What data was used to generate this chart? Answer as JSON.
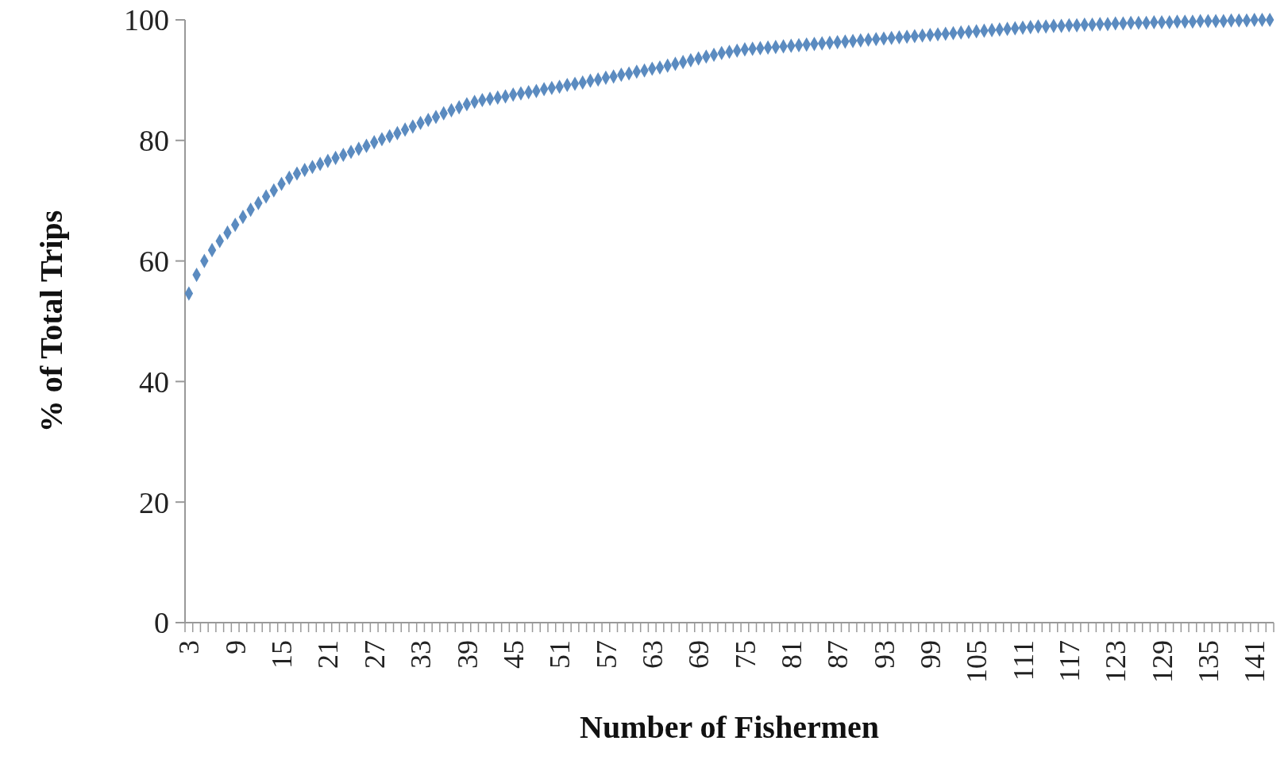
{
  "chart_data": {
    "type": "scatter",
    "xlabel": "Number of Fishermen",
    "ylabel": "% of Total Trips",
    "categories": [
      "3",
      null,
      null,
      null,
      null,
      null,
      "9",
      null,
      null,
      null,
      null,
      null,
      "15",
      null,
      null,
      null,
      null,
      null,
      "21",
      null,
      null,
      null,
      null,
      null,
      "27",
      null,
      null,
      null,
      null,
      null,
      "33",
      null,
      null,
      null,
      null,
      null,
      "39",
      null,
      null,
      null,
      null,
      null,
      "45",
      null,
      null,
      null,
      null,
      null,
      "51",
      null,
      null,
      null,
      null,
      null,
      "57",
      null,
      null,
      null,
      null,
      null,
      "63",
      null,
      null,
      null,
      null,
      null,
      "69",
      null,
      null,
      null,
      null,
      null,
      "75",
      null,
      null,
      null,
      null,
      null,
      "81",
      null,
      null,
      null,
      null,
      null,
      "87",
      null,
      null,
      null,
      null,
      null,
      "93",
      null,
      null,
      null,
      null,
      null,
      "99",
      null,
      null,
      null,
      null,
      null,
      "105",
      null,
      null,
      null,
      null,
      null,
      "111",
      null,
      null,
      null,
      null,
      null,
      "117",
      null,
      null,
      null,
      null,
      null,
      "123",
      null,
      null,
      null,
      null,
      null,
      "129",
      null,
      null,
      null,
      null,
      null,
      "135",
      null,
      null,
      null,
      null,
      null,
      "141",
      null,
      null
    ],
    "series": [
      {
        "color": "#5b8bc0",
        "values": [
          54.6,
          57.7,
          60,
          61.8,
          63.3,
          64.7,
          66,
          67.3,
          68.5,
          69.6,
          70.7,
          71.7,
          72.8,
          73.8,
          74.5,
          75.1,
          75.6,
          76.1,
          76.6,
          77.1,
          77.6,
          78.1,
          78.6,
          79.1,
          79.7,
          80.2,
          80.7,
          81.2,
          81.8,
          82.3,
          82.9,
          83.4,
          83.9,
          84.5,
          85,
          85.5,
          86,
          86.4,
          86.7,
          86.9,
          87.1,
          87.3,
          87.6,
          87.8,
          88,
          88.2,
          88.5,
          88.7,
          88.9,
          89.2,
          89.4,
          89.6,
          89.9,
          90.1,
          90.4,
          90.6,
          90.9,
          91.1,
          91.4,
          91.6,
          91.9,
          92.1,
          92.4,
          92.7,
          93,
          93.3,
          93.6,
          93.9,
          94.2,
          94.5,
          94.7,
          94.9,
          95.1,
          95.2,
          95.3,
          95.4,
          95.5,
          95.6,
          95.7,
          95.8,
          95.9,
          96,
          96.1,
          96.2,
          96.3,
          96.4,
          96.5,
          96.6,
          96.7,
          96.8,
          96.9,
          97,
          97.1,
          97.2,
          97.3,
          97.4,
          97.5,
          97.6,
          97.7,
          97.8,
          97.9,
          98,
          98.1,
          98.2,
          98.3,
          98.4,
          98.5,
          98.6,
          98.7,
          98.8,
          98.9,
          98.9,
          99,
          99,
          99.1,
          99.1,
          99.2,
          99.2,
          99.3,
          99.3,
          99.4,
          99.4,
          99.5,
          99.5,
          99.5,
          99.6,
          99.6,
          99.6,
          99.7,
          99.7,
          99.7,
          99.8,
          99.8,
          99.8,
          99.8,
          99.9,
          99.9,
          99.9,
          100,
          100,
          100
        ]
      }
    ],
    "ylim": [
      0,
      100
    ],
    "yticks": [
      0,
      20,
      40,
      60,
      80,
      100
    ],
    "grid": false,
    "marker": "diamond"
  }
}
